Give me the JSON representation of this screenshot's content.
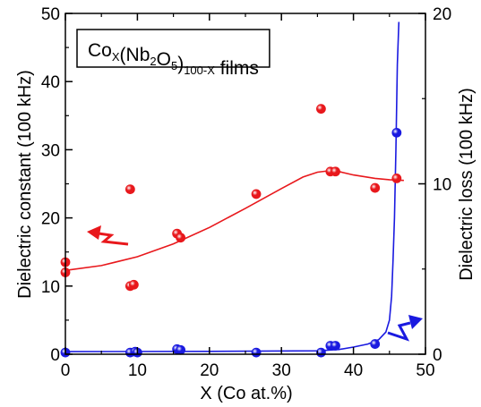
{
  "chart_data": {
    "type": "scatter",
    "title": {
      "parts": [
        {
          "text": "Co",
          "sub": false
        },
        {
          "text": "X",
          "sub": true
        },
        {
          "text": "(Nb",
          "sub": false
        },
        {
          "text": "2",
          "sub": true
        },
        {
          "text": "O",
          "sub": false
        },
        {
          "text": "5",
          "sub": true
        },
        {
          "text": ")",
          "sub": false
        },
        {
          "text": "100-X",
          "sub": true
        },
        {
          "text": " films",
          "sub": false
        }
      ]
    },
    "xlabel": "X (Co at.%)",
    "ylabel_left": "Dielectric constant (100 kHz)",
    "ylabel_right": "Dielectric loss (100 kHz)",
    "xlim": [
      0,
      50
    ],
    "ylim_left": [
      0,
      50
    ],
    "ylim_right": [
      0,
      20
    ],
    "xticks": [
      0,
      10,
      20,
      30,
      40,
      50
    ],
    "yticks_left": [
      0,
      10,
      20,
      30,
      40,
      50
    ],
    "yticks_right": [
      0,
      10,
      20
    ],
    "grid": false,
    "colors": {
      "constant": "#e8181c",
      "loss": "#1a1ae0"
    },
    "series": [
      {
        "axis": "left",
        "points": [
          [
            0,
            12
          ],
          [
            0,
            13.5
          ],
          [
            9,
            10
          ],
          [
            9.5,
            10.2
          ],
          [
            9,
            24.2
          ],
          [
            15.5,
            17.7
          ],
          [
            16,
            17.1
          ],
          [
            26.5,
            23.5
          ],
          [
            35.5,
            36
          ],
          [
            36.8,
            26.8
          ],
          [
            37.5,
            26.8
          ],
          [
            43,
            24.4
          ],
          [
            46,
            25.8
          ]
        ],
        "fit": [
          [
            0,
            12.3
          ],
          [
            5,
            13
          ],
          [
            10,
            14.3
          ],
          [
            15,
            16.2
          ],
          [
            20,
            18.6
          ],
          [
            25,
            21.4
          ],
          [
            30,
            24.3
          ],
          [
            33,
            26
          ],
          [
            35,
            26.7
          ],
          [
            36.5,
            26.9
          ],
          [
            38,
            26.8
          ],
          [
            40,
            26.3
          ],
          [
            43,
            25.8
          ],
          [
            45,
            25.6
          ],
          [
            47,
            25.5
          ]
        ]
      },
      {
        "axis": "right",
        "points": [
          [
            0,
            0.1
          ],
          [
            9,
            0.1
          ],
          [
            9.7,
            0.15
          ],
          [
            10,
            0.1
          ],
          [
            15.5,
            0.3
          ],
          [
            16,
            0.25
          ],
          [
            26.5,
            0.1
          ],
          [
            35.5,
            0.1
          ],
          [
            36.8,
            0.5
          ],
          [
            37.5,
            0.5
          ],
          [
            43,
            0.6
          ],
          [
            46,
            13
          ]
        ],
        "fit": [
          [
            0,
            0.15
          ],
          [
            20,
            0.17
          ],
          [
            35,
            0.2
          ],
          [
            38,
            0.28
          ],
          [
            40,
            0.42
          ],
          [
            42,
            0.6
          ],
          [
            43.5,
            0.85
          ],
          [
            44.5,
            1.3
          ],
          [
            45,
            2
          ],
          [
            45.3,
            3.4
          ],
          [
            45.5,
            5.5
          ],
          [
            45.7,
            8
          ],
          [
            45.9,
            12
          ],
          [
            46.1,
            17
          ],
          [
            46.3,
            19.5
          ]
        ]
      }
    ]
  }
}
